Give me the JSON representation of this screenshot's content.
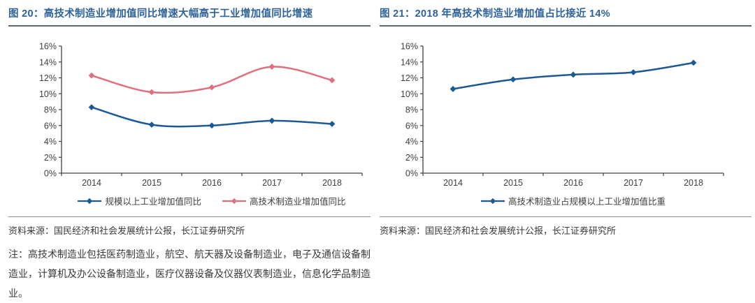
{
  "page": {
    "background": "#ffffff"
  },
  "colors": {
    "title_blue": "#2f6398",
    "title_rule": "#5c666e",
    "source_rule": "#8a8a8a",
    "axis": "#404040",
    "series_blue": "#1b5a94",
    "series_pink": "#e0707e"
  },
  "figures": [
    {
      "title": "图 20：高技术制造业增加值同比增速大幅高于工业增加值同比增速",
      "source": "资料来源：国民经济和社会发展统计公报，长江证券研究所",
      "note": "注：高技术制造业包括医药制造业，航空、航天器及设备制造业，电子及通信设备制造业，计算机及办公设备制造业，医疗仪器设备及仪器仪表制造业，信息化学品制造业。"
    },
    {
      "title": "图 21：2018 年高技术制造业增加值占比接近 14%",
      "source": "资料来源：国民经济和社会发展统计公报，长江证券研究所"
    }
  ],
  "chart_data": [
    {
      "type": "line",
      "title": "图 20：高技术制造业增加值同比增速大幅高于工业增加值同比增速",
      "categories": [
        "2014",
        "2015",
        "2016",
        "2017",
        "2018"
      ],
      "series": [
        {
          "name": "规模以上工业增加值同比",
          "color": "#1b5a94",
          "values": [
            8.3,
            6.1,
            6.0,
            6.6,
            6.2
          ]
        },
        {
          "name": "高技术制造业增加值同比",
          "color": "#e0707e",
          "values": [
            12.3,
            10.2,
            10.8,
            13.4,
            11.7
          ]
        }
      ],
      "ylabel": "",
      "xlabel": "",
      "ylim": [
        0,
        16
      ],
      "ytick_step": 2,
      "ytick_suffix": "%",
      "grid": false,
      "smooth": true,
      "marker": "diamond",
      "legend_position": "bottom"
    },
    {
      "type": "line",
      "title": "图 21：2018 年高技术制造业增加值占比接近 14%",
      "categories": [
        "2014",
        "2015",
        "2016",
        "2017",
        "2018"
      ],
      "series": [
        {
          "name": "高技术制造业占规模以上工业增加值比重",
          "color": "#1b5a94",
          "values": [
            10.6,
            11.8,
            12.4,
            12.7,
            13.9
          ]
        }
      ],
      "ylabel": "",
      "xlabel": "",
      "ylim": [
        0,
        16
      ],
      "ytick_step": 2,
      "ytick_suffix": "%",
      "grid": false,
      "smooth": true,
      "marker": "diamond",
      "legend_position": "bottom"
    }
  ]
}
